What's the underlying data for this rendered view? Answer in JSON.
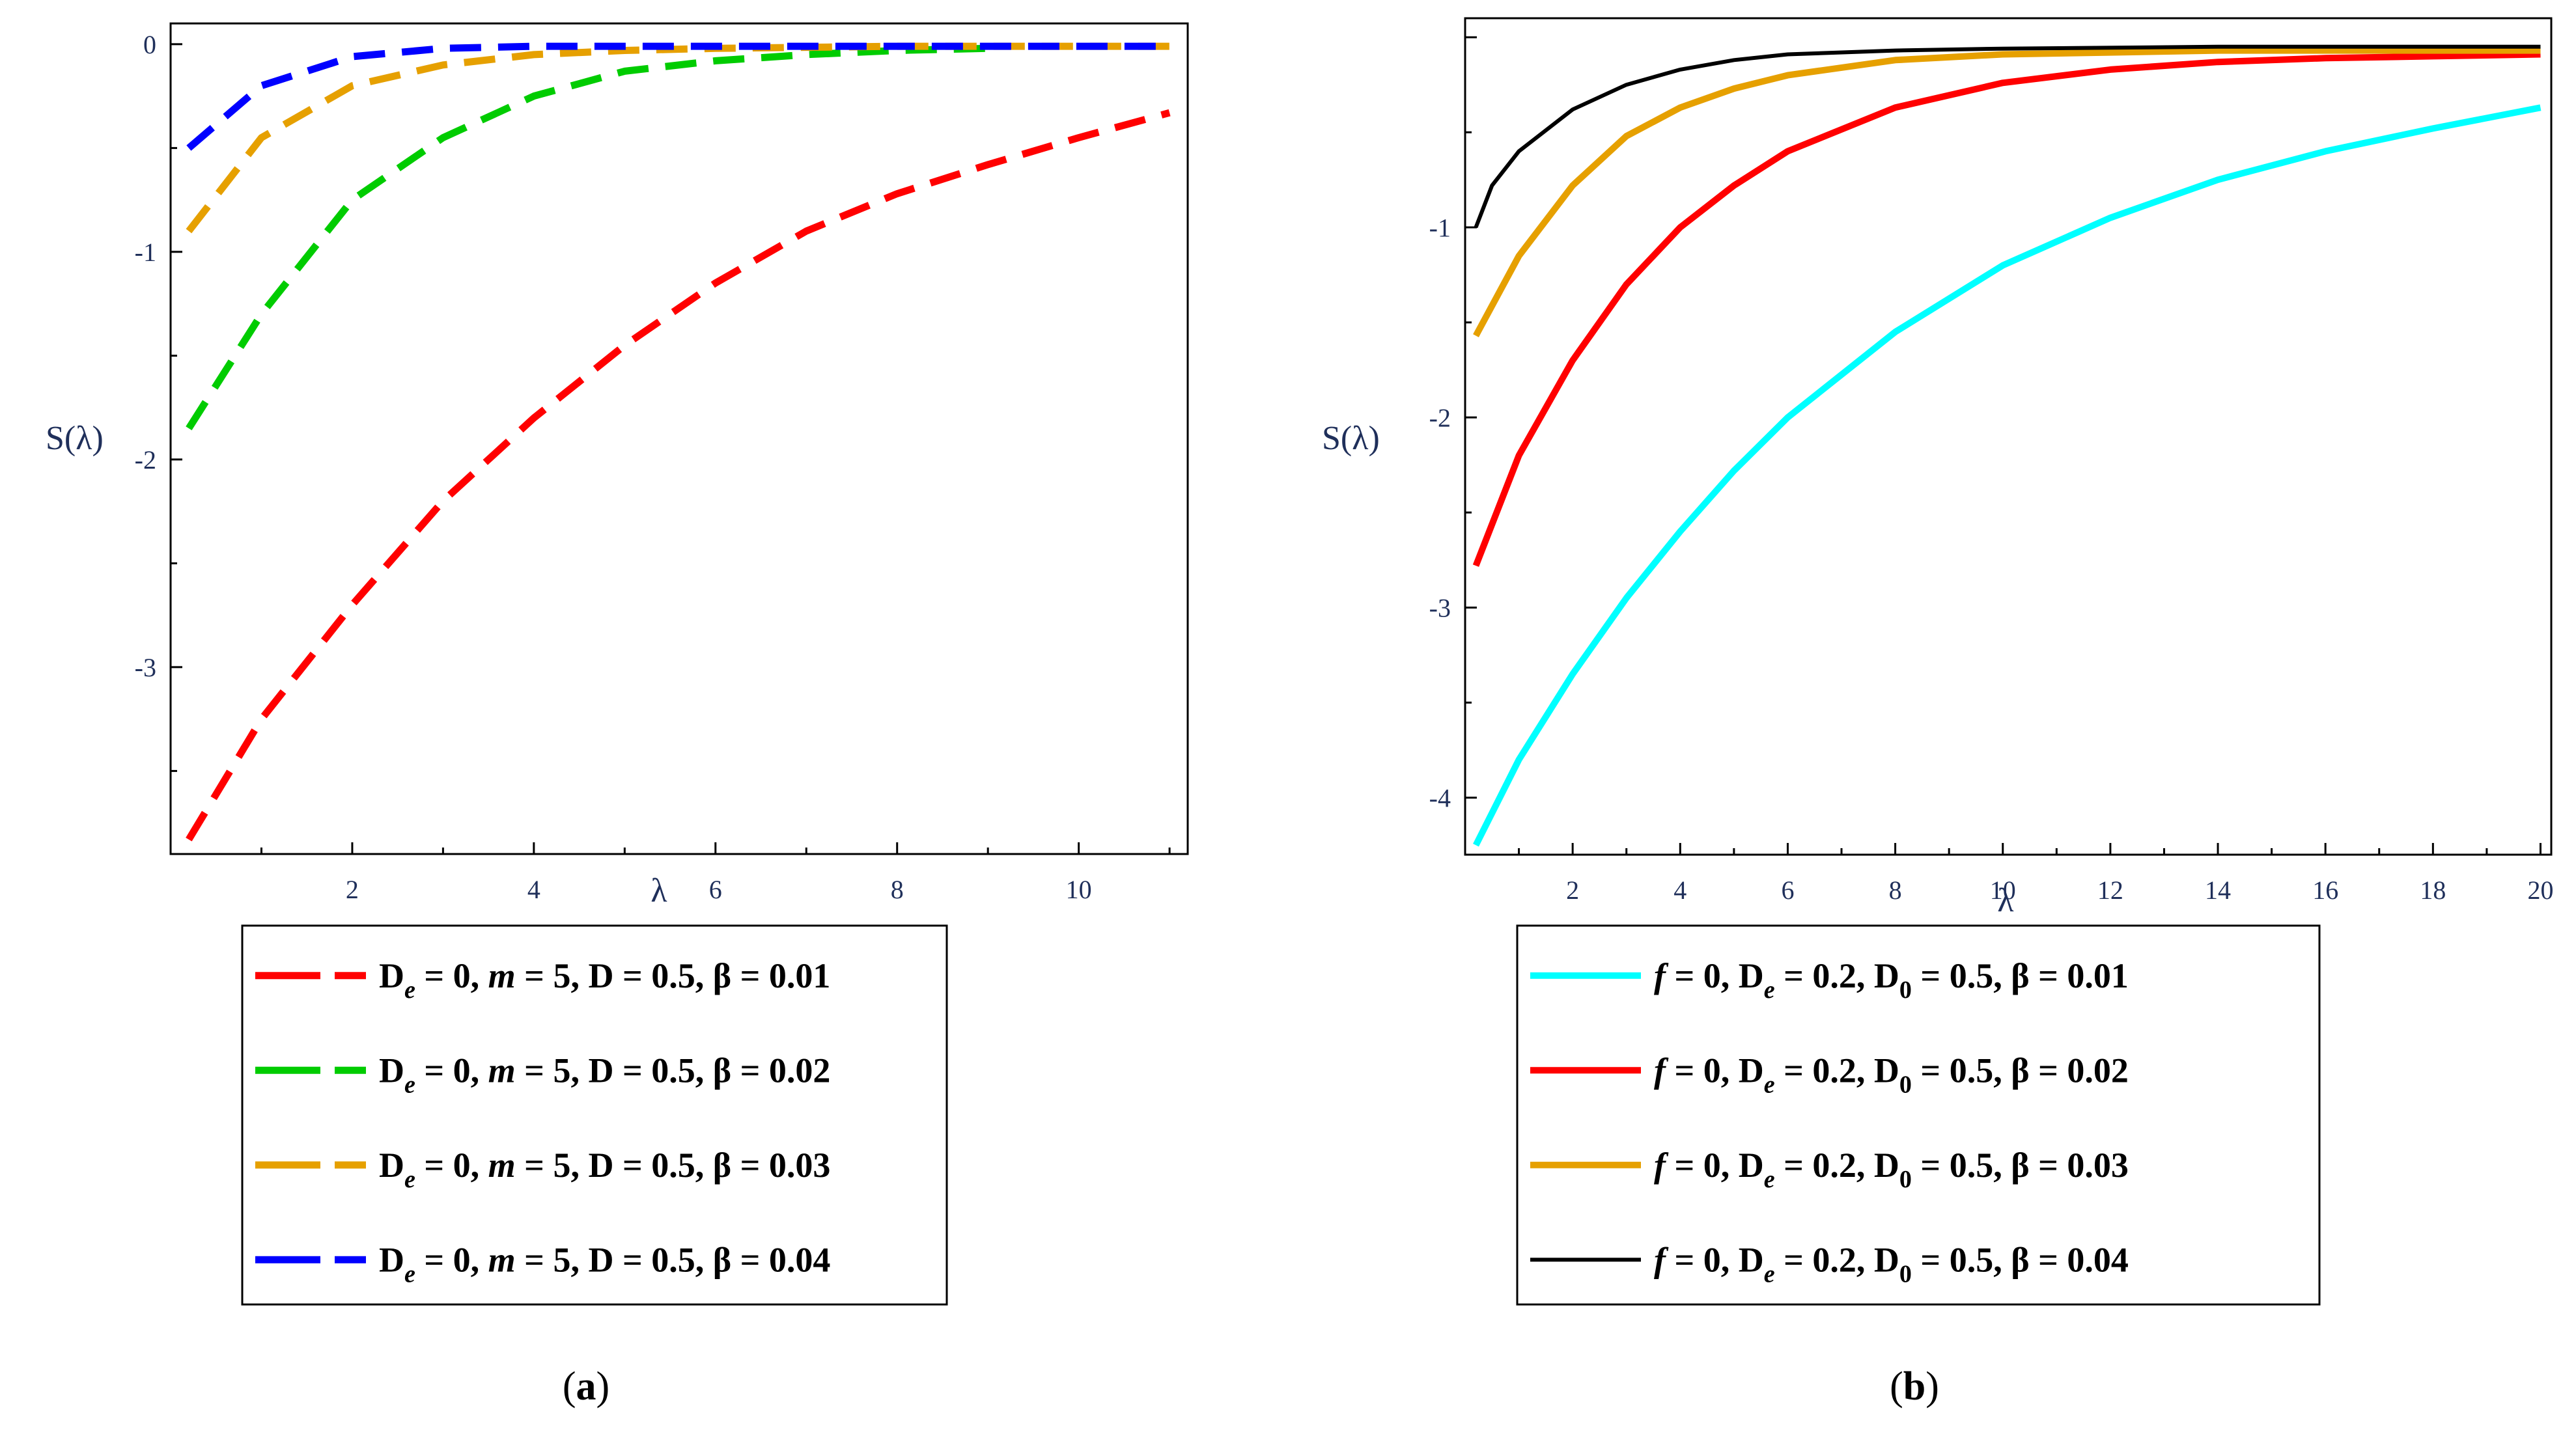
{
  "chart_data": [
    {
      "type": "line",
      "panel_label": "a",
      "xlabel": "λ",
      "ylabel": "S(λ)",
      "xlim": [
        0,
        11.2
      ],
      "ylim": [
        -3.9,
        0.1
      ],
      "xticks": [
        2,
        4,
        6,
        8,
        10
      ],
      "yticks": [
        0,
        -1,
        -2,
        -3
      ],
      "line_style": "dashed",
      "legend": {
        "placement": "below",
        "entries": [
          "D_e = 0, m = 5, D = 0.5, β = 0.01",
          "D_e = 0, m = 5, D = 0.5, β = 0.02",
          "D_e = 0, m = 5, D = 0.5, β = 0.03",
          "D_e = 0, m = 5, D = 0.5, β = 0.04"
        ]
      },
      "series": [
        {
          "label_parts": [
            "D",
            "e",
            " = 0, ",
            "m",
            " = 5, D = 0.5, β = 0.01"
          ],
          "color": "#ff0000",
          "x": [
            0.2,
            1,
            2,
            3,
            4,
            5,
            6,
            7,
            8,
            9,
            10,
            11
          ],
          "y": [
            -3.83,
            -3.25,
            -2.7,
            -2.2,
            -1.8,
            -1.45,
            -1.15,
            -0.9,
            -0.72,
            -0.58,
            -0.45,
            -0.33
          ]
        },
        {
          "label_parts": [
            "D",
            "e",
            " = 0, ",
            "m",
            " = 5, D = 0.5, β = 0.02"
          ],
          "color": "#00cc00",
          "x": [
            0.2,
            1,
            2,
            3,
            4,
            5,
            6,
            7,
            8,
            9
          ],
          "y": [
            -1.85,
            -1.3,
            -0.75,
            -0.45,
            -0.25,
            -0.13,
            -0.08,
            -0.05,
            -0.03,
            -0.02
          ]
        },
        {
          "label_parts": [
            "D",
            "e",
            " = 0, ",
            "m",
            " = 5, D = 0.5, β = 0.03"
          ],
          "color": "#e6a000",
          "x": [
            0.2,
            1,
            2,
            3,
            4,
            5,
            6,
            8,
            11
          ],
          "y": [
            -0.9,
            -0.45,
            -0.2,
            -0.1,
            -0.05,
            -0.03,
            -0.02,
            -0.01,
            -0.01
          ]
        },
        {
          "label_parts": [
            "D",
            "e",
            " = 0, ",
            "m",
            " = 5, D = 0.5, β = 0.04"
          ],
          "color": "#0000ff",
          "x": [
            0.2,
            1,
            2,
            3,
            4,
            6,
            8,
            11
          ],
          "y": [
            -0.5,
            -0.2,
            -0.06,
            -0.02,
            -0.01,
            -0.01,
            -0.01,
            -0.01
          ]
        }
      ]
    },
    {
      "type": "line",
      "panel_label": "b",
      "xlabel": "λ",
      "ylabel": "S(λ)",
      "xlim": [
        0,
        20.2
      ],
      "ylim": [
        -4.3,
        0.1
      ],
      "xticks": [
        2,
        4,
        6,
        8,
        10,
        12,
        14,
        16,
        18,
        20
      ],
      "yticks": [
        -1,
        -2,
        -3,
        -4
      ],
      "line_style": "solid",
      "legend": {
        "placement": "below",
        "entries": [
          "f = 0, D_e = 0.2, D_0 = 0.5, β = 0.01",
          "f = 0, D_e = 0.2, D_0 = 0.5, β = 0.02",
          "f = 0, D_e = 0.2, D_0 = 0.5, β = 0.03",
          "f = 0, D_e = 0.2, D_0 = 0.5, β = 0.04"
        ]
      },
      "series": [
        {
          "label_parts": [
            "f",
            " = 0, D",
            "e",
            " = 0.2,  D",
            "0",
            " = 0.5, β = 0.01"
          ],
          "color": "#00ffff",
          "x": [
            0.2,
            1,
            2,
            3,
            4,
            5,
            6,
            8,
            10,
            12,
            14,
            16,
            18,
            20
          ],
          "y": [
            -4.25,
            -3.8,
            -3.35,
            -2.95,
            -2.6,
            -2.28,
            -2.0,
            -1.55,
            -1.2,
            -0.95,
            -0.75,
            -0.6,
            -0.48,
            -0.37
          ]
        },
        {
          "label_parts": [
            "f",
            " = 0, D",
            "e",
            " = 0.2,  D",
            "0",
            " = 0.5, β = 0.02"
          ],
          "color": "#ff0000",
          "x": [
            0.2,
            1,
            2,
            3,
            4,
            5,
            6,
            8,
            10,
            12,
            14,
            16,
            18,
            20
          ],
          "y": [
            -2.78,
            -2.2,
            -1.7,
            -1.3,
            -1.0,
            -0.78,
            -0.6,
            -0.37,
            -0.24,
            -0.17,
            -0.13,
            -0.11,
            -0.1,
            -0.09
          ]
        },
        {
          "label_parts": [
            "f",
            " = 0, D",
            "e",
            " = 0.2,  D",
            "0",
            " = 0.5, β = 0.03"
          ],
          "color": "#e6a000",
          "x": [
            0.2,
            1,
            2,
            3,
            4,
            5,
            6,
            8,
            10,
            12,
            14,
            16,
            18,
            20
          ],
          "y": [
            -1.57,
            -1.15,
            -0.78,
            -0.52,
            -0.37,
            -0.27,
            -0.2,
            -0.12,
            -0.09,
            -0.08,
            -0.07,
            -0.07,
            -0.07,
            -0.07
          ]
        },
        {
          "label_parts": [
            "f",
            " = 0, D",
            "e",
            " = 0.2,  D",
            "0",
            " = 0.5, β = 0.04"
          ],
          "color": "#000000",
          "x": [
            0.2,
            0.5,
            1,
            2,
            3,
            4,
            5,
            6,
            8,
            10,
            14,
            20
          ],
          "y": [
            -1.0,
            -0.78,
            -0.6,
            -0.38,
            -0.25,
            -0.17,
            -0.12,
            -0.09,
            -0.07,
            -0.06,
            -0.05,
            -0.05
          ]
        }
      ]
    }
  ]
}
